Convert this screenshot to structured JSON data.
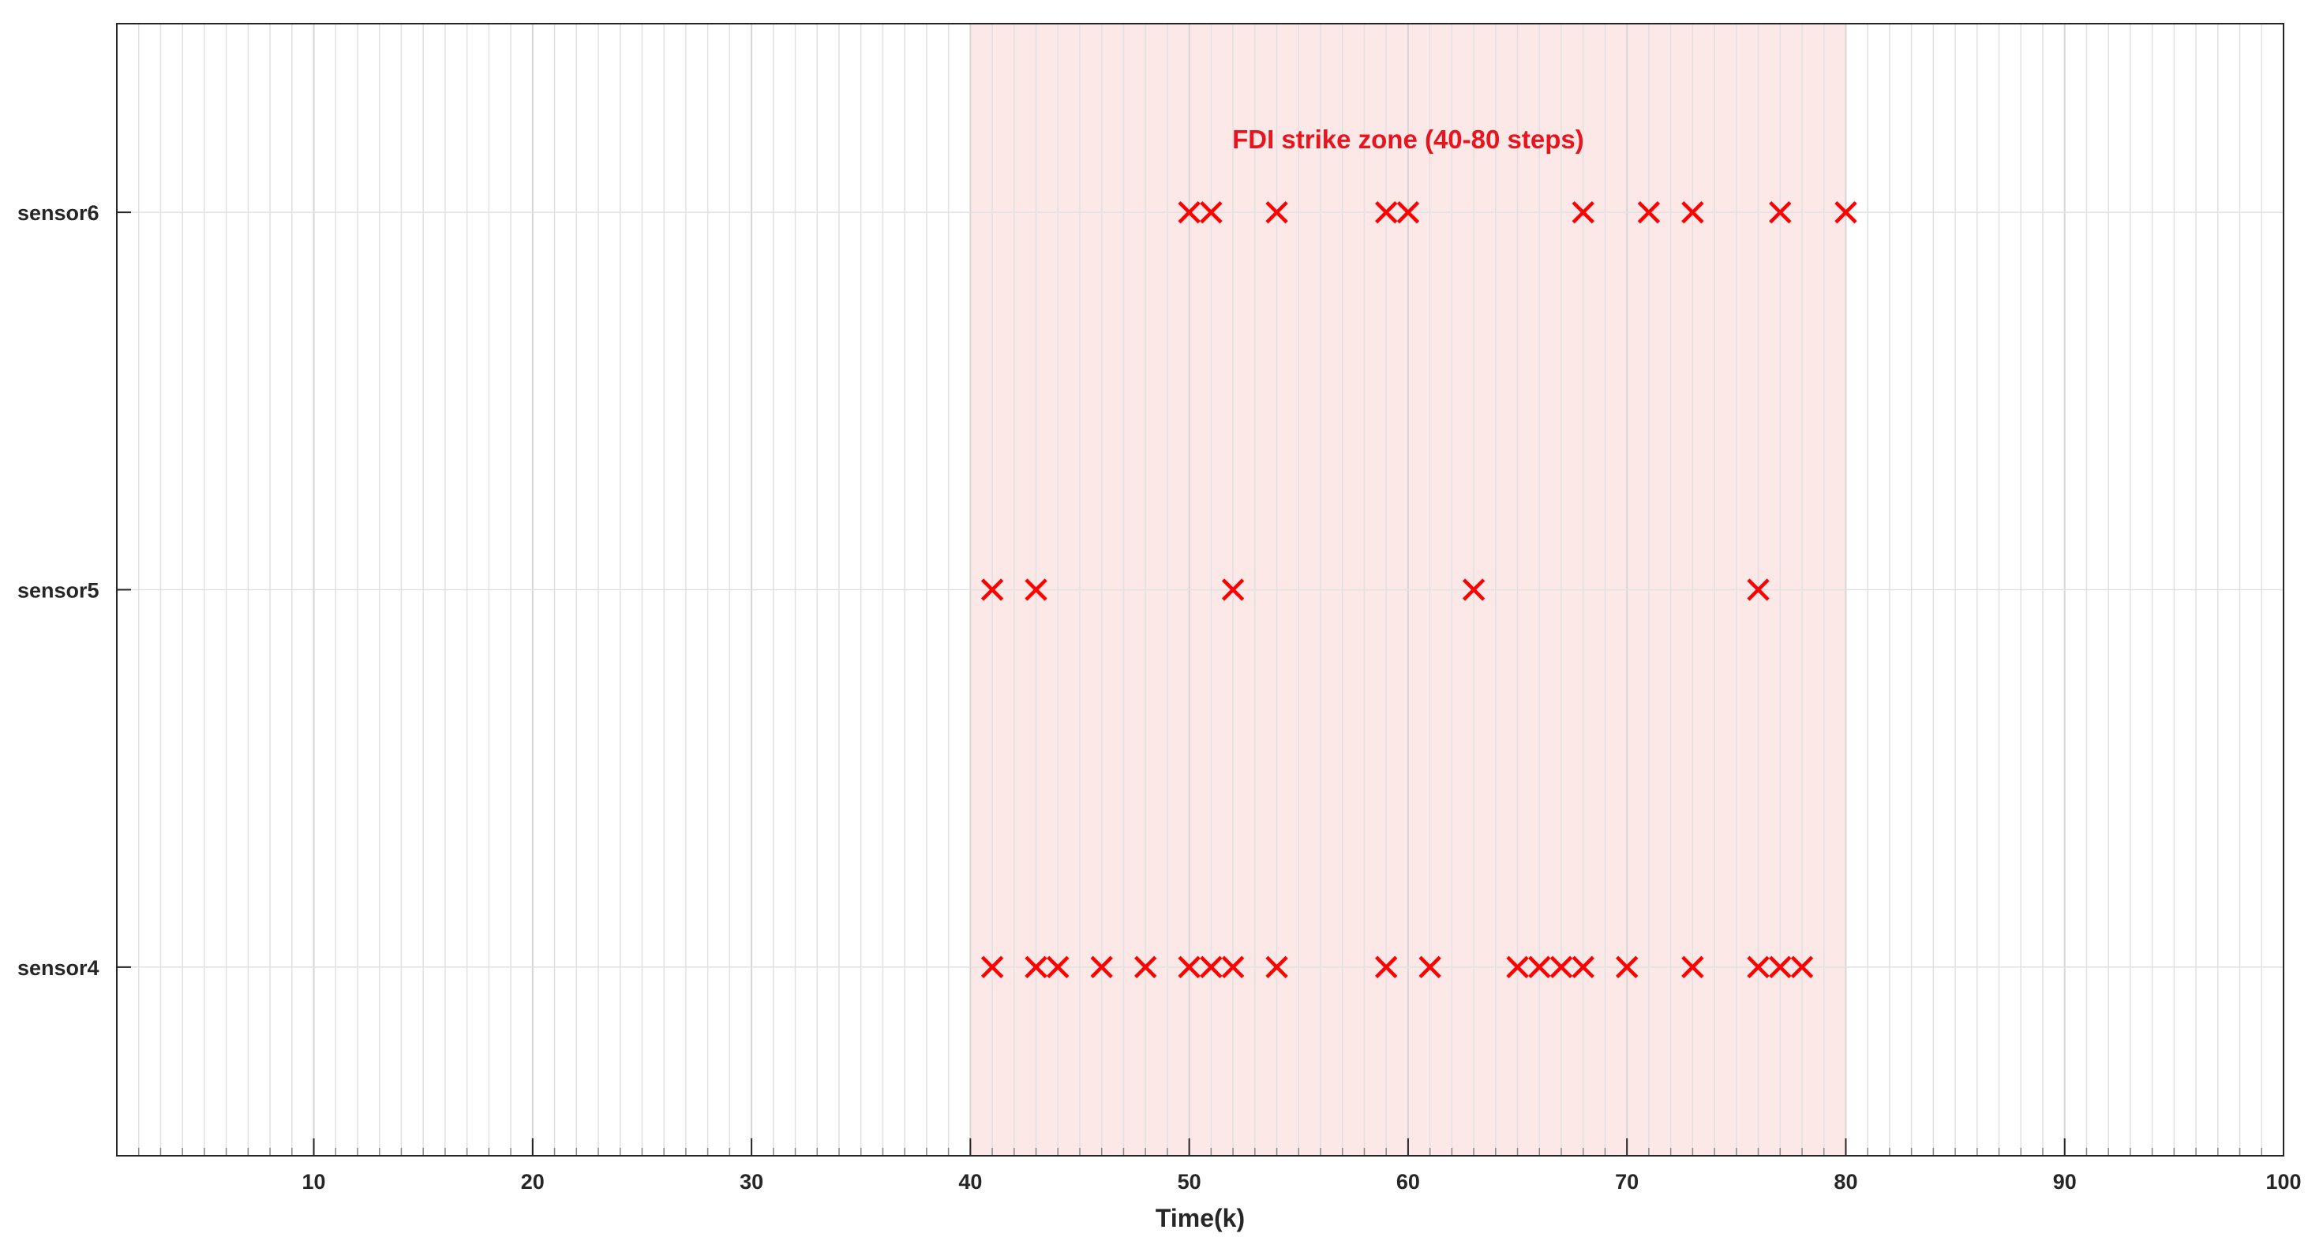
{
  "chart_data": {
    "type": "scatter",
    "title": "",
    "xlabel": "Time(k)",
    "ylabel": "",
    "xlim": [
      1,
      100
    ],
    "ylim": [
      3.5,
      6.5
    ],
    "grid": true,
    "minor_grid": true,
    "x_ticks": [
      10,
      20,
      30,
      40,
      50,
      60,
      70,
      80,
      90,
      100
    ],
    "y_categories": [
      "sensor4",
      "sensor5",
      "sensor6"
    ],
    "marker": "x",
    "marker_color": "#ff0000",
    "shaded_region": {
      "x_start": 40,
      "x_end": 80,
      "label": "FDI strike zone (40-80 steps)",
      "fill_color": "#fde8e8",
      "label_color": "#e8141e"
    },
    "series": [
      {
        "y": "sensor4",
        "x": [
          41,
          43,
          44,
          46,
          48,
          50,
          51,
          52,
          54,
          59,
          61,
          65,
          66,
          67,
          68,
          70,
          73,
          76,
          77,
          78
        ]
      },
      {
        "y": "sensor5",
        "x": [
          41,
          43,
          52,
          63,
          76
        ]
      },
      {
        "y": "sensor6",
        "x": [
          50,
          51,
          54,
          59,
          60,
          68,
          71,
          73,
          77,
          80
        ]
      }
    ]
  }
}
